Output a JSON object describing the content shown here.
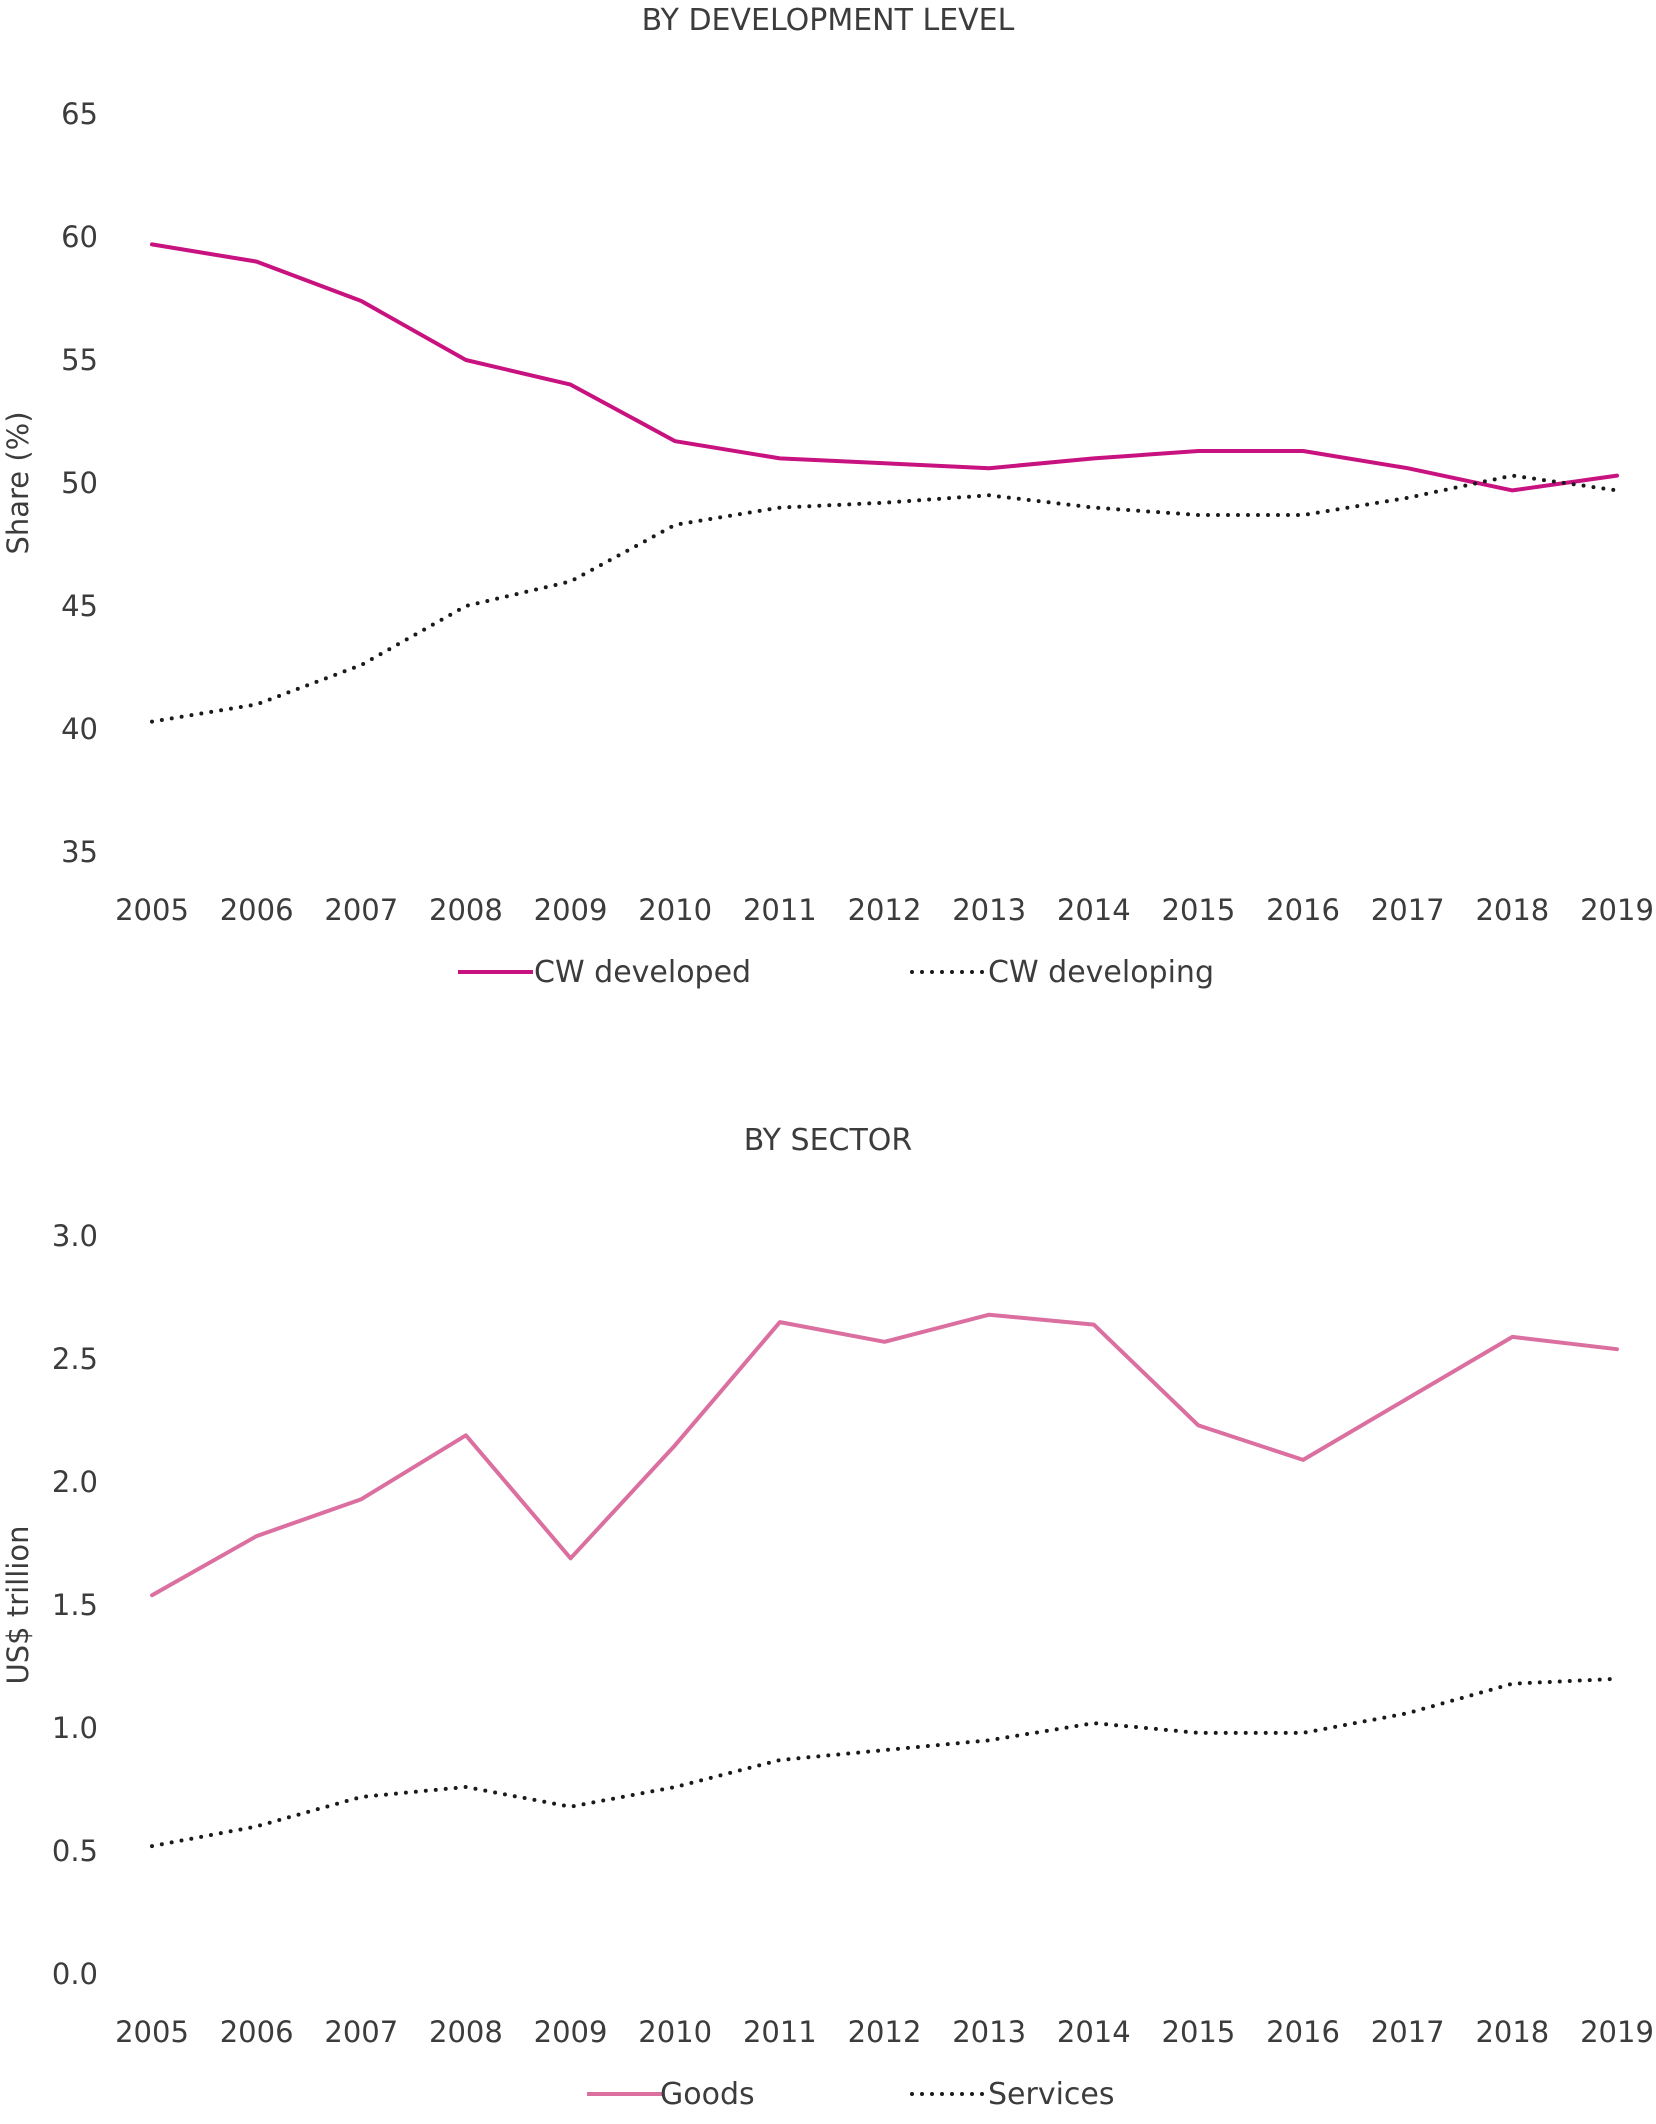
{
  "chart_data": [
    {
      "type": "line",
      "title": "BY DEVELOPMENT LEVEL",
      "xlabel": "",
      "ylabel": "Share (%)",
      "ylim": [
        35,
        65
      ],
      "yticks": [
        "65",
        "60",
        "55",
        "50",
        "45",
        "40",
        "35"
      ],
      "yticks_values": [
        65,
        60,
        55,
        50,
        45,
        40,
        35
      ],
      "categories": [
        "2005",
        "2006",
        "2007",
        "2008",
        "2009",
        "2010",
        "2011",
        "2012",
        "2013",
        "2014",
        "2015",
        "2016",
        "2017",
        "2018",
        "2019"
      ],
      "grid": false,
      "legend_position": "bottom-center",
      "series": [
        {
          "name": "CW developed",
          "style": "solid",
          "color": "#c7127f",
          "values": [
            59.7,
            59.0,
            57.4,
            55.0,
            54.0,
            51.7,
            51.0,
            50.8,
            50.6,
            51.0,
            51.3,
            51.3,
            50.6,
            49.7,
            50.3
          ]
        },
        {
          "name": "CW developing",
          "style": "dotted",
          "color": "#1a1a1a",
          "values": [
            40.3,
            41.0,
            42.6,
            45.0,
            46.0,
            48.3,
            49.0,
            49.2,
            49.5,
            49.0,
            48.7,
            48.7,
            49.4,
            50.3,
            49.7
          ]
        }
      ]
    },
    {
      "type": "line",
      "title": "BY SECTOR",
      "xlabel": "",
      "ylabel": "US$ trillion",
      "ylim": [
        0,
        3
      ],
      "yticks": [
        "3.0",
        "2.5",
        "2.0",
        "1.5",
        "1.0",
        "0.5",
        "0.0"
      ],
      "yticks_values": [
        3.0,
        2.5,
        2.0,
        1.5,
        1.0,
        0.5,
        0.0
      ],
      "categories": [
        "2005",
        "2006",
        "2007",
        "2008",
        "2009",
        "2010",
        "2011",
        "2012",
        "2013",
        "2014",
        "2015",
        "2016",
        "2017",
        "2018",
        "2019"
      ],
      "grid": false,
      "legend_position": "bottom-center",
      "series": [
        {
          "name": "Goods",
          "style": "solid",
          "color": "#da6fa0",
          "values": [
            1.54,
            1.78,
            1.93,
            2.19,
            1.69,
            2.15,
            2.65,
            2.57,
            2.68,
            2.64,
            2.23,
            2.09,
            2.34,
            2.59,
            2.54
          ]
        },
        {
          "name": "Services",
          "style": "dotted",
          "color": "#1a1a1a",
          "values": [
            0.52,
            0.6,
            0.72,
            0.76,
            0.68,
            0.76,
            0.87,
            0.91,
            0.95,
            1.02,
            0.98,
            0.98,
            1.06,
            1.18,
            1.2
          ]
        }
      ]
    }
  ]
}
